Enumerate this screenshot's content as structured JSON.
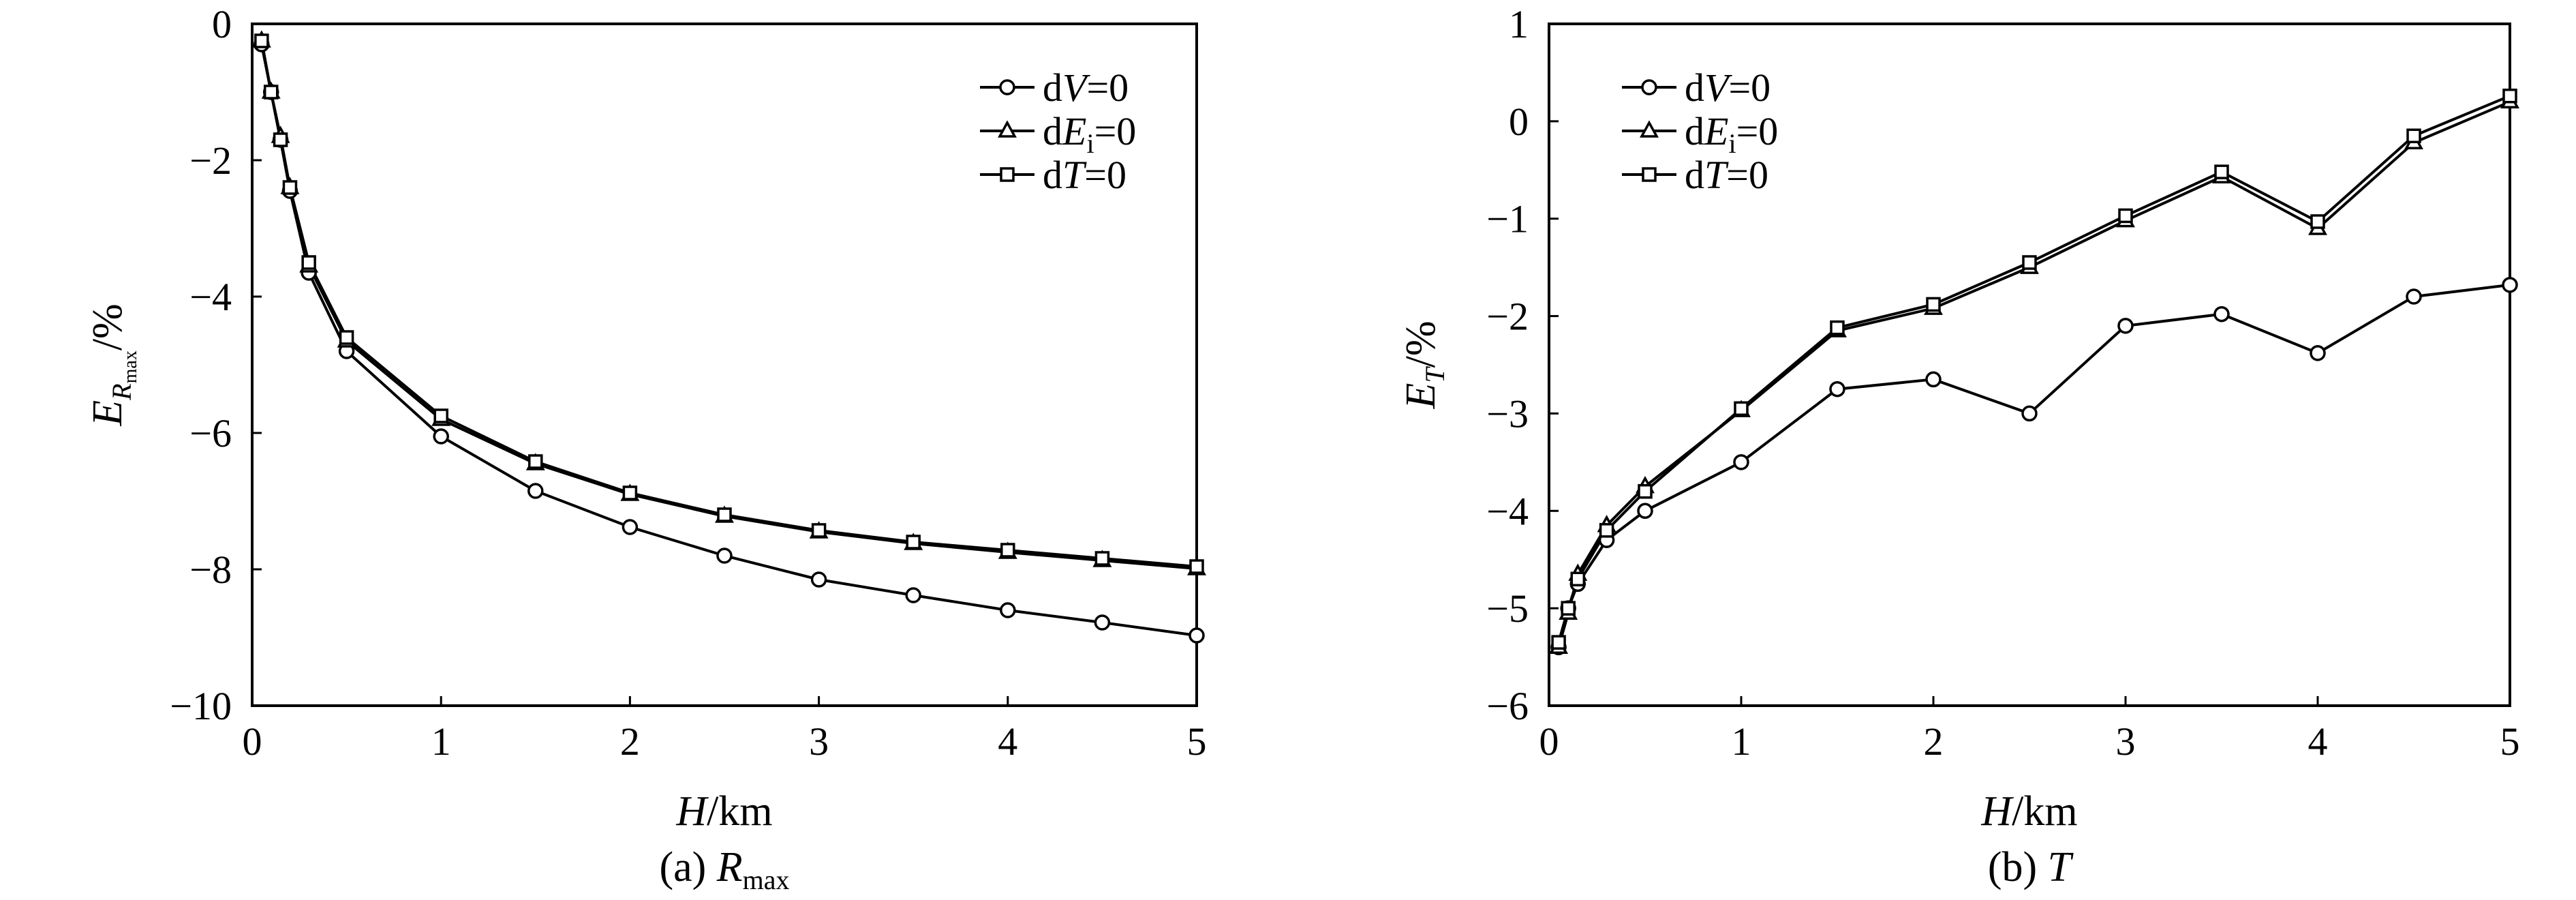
{
  "charts": [
    {
      "id": "a",
      "caption": {
        "prefix": "(a) ",
        "main": "R",
        "sub": "max"
      },
      "ylabel": {
        "main": "E",
        "sub1": "R",
        "sub2": "max",
        "tail": "/%"
      },
      "xlabel": {
        "main": "H",
        "tail": "/km"
      },
      "legend": [
        {
          "d": "d",
          "v": "V",
          "s": "",
          "e": "=0"
        },
        {
          "d": "d",
          "v": "E",
          "s": "i",
          "e": "=0"
        },
        {
          "d": "d",
          "v": "T",
          "s": "",
          "e": "=0"
        }
      ]
    },
    {
      "id": "b",
      "caption": {
        "prefix": "(b) ",
        "main": "T"
      },
      "ylabel": {
        "main": "E",
        "sub1": "T",
        "tail": "/%"
      },
      "xlabel": {
        "main": "H",
        "tail": "/km"
      },
      "legend": [
        {
          "d": "d",
          "v": "V",
          "s": "",
          "e": "=0"
        },
        {
          "d": "d",
          "v": "E",
          "s": "i",
          "e": "=0"
        },
        {
          "d": "d",
          "v": "T",
          "s": "",
          "e": "=0"
        }
      ]
    }
  ],
  "chart_data": [
    {
      "type": "line",
      "xlim": [
        0,
        5
      ],
      "ylim": [
        -10,
        0
      ],
      "xticks": [
        0,
        1,
        2,
        3,
        4,
        5
      ],
      "yticks": [
        0,
        -2,
        -4,
        -6,
        -8,
        -10
      ],
      "ytick_labels": [
        "0",
        "−2",
        "−4",
        "−6",
        "−8",
        "−10"
      ],
      "legend_position": "top-right",
      "grid": false,
      "series": [
        {
          "name": "dV=0",
          "marker": "circle",
          "x": [
            0.05,
            0.1,
            0.15,
            0.2,
            0.3,
            0.5,
            1,
            1.5,
            2,
            2.5,
            3,
            3.5,
            4,
            4.5,
            5
          ],
          "y": [
            -0.3,
            -1.0,
            -1.7,
            -2.45,
            -3.65,
            -4.8,
            -6.05,
            -6.85,
            -7.38,
            -7.8,
            -8.15,
            -8.38,
            -8.6,
            -8.78,
            -8.97
          ]
        },
        {
          "name": "dEi=0",
          "marker": "triangle",
          "x": [
            0.05,
            0.1,
            0.15,
            0.2,
            0.3,
            0.5,
            1,
            1.5,
            2,
            2.5,
            3,
            3.5,
            4,
            4.5,
            5
          ],
          "y": [
            -0.25,
            -1.0,
            -1.65,
            -2.4,
            -3.55,
            -4.65,
            -5.8,
            -6.45,
            -6.9,
            -7.22,
            -7.45,
            -7.62,
            -7.75,
            -7.87,
            -7.99
          ]
        },
        {
          "name": "dT=0",
          "marker": "square",
          "x": [
            0.05,
            0.1,
            0.15,
            0.2,
            0.3,
            0.5,
            1,
            1.5,
            2,
            2.5,
            3,
            3.5,
            4,
            4.5,
            5
          ],
          "y": [
            -0.25,
            -1.0,
            -1.7,
            -2.4,
            -3.5,
            -4.6,
            -5.75,
            -6.42,
            -6.88,
            -7.2,
            -7.43,
            -7.6,
            -7.72,
            -7.84,
            -7.96
          ]
        }
      ]
    },
    {
      "type": "line",
      "xlim": [
        0,
        5
      ],
      "ylim": [
        -6,
        1
      ],
      "xticks": [
        0,
        1,
        2,
        3,
        4,
        5
      ],
      "yticks": [
        1,
        0,
        -1,
        -2,
        -3,
        -4,
        -5,
        -6
      ],
      "ytick_labels": [
        "1",
        "0",
        "−1",
        "−2",
        "−3",
        "−4",
        "−5",
        "−6"
      ],
      "legend_position": "top-left",
      "grid": false,
      "series": [
        {
          "name": "dV=0",
          "marker": "circle",
          "x": [
            0.05,
            0.1,
            0.15,
            0.3,
            0.5,
            1,
            1.5,
            2,
            2.5,
            3,
            3.5,
            4,
            4.5,
            5
          ],
          "y": [
            -5.4,
            -5.0,
            -4.75,
            -4.3,
            -4.0,
            -3.5,
            -2.75,
            -2.65,
            -3.0,
            -2.1,
            -1.98,
            -2.38,
            -1.8,
            -1.68
          ]
        },
        {
          "name": "dEi=0",
          "marker": "triangle",
          "x": [
            0.05,
            0.1,
            0.15,
            0.3,
            0.5,
            1,
            1.5,
            2,
            2.5,
            3,
            3.5,
            4,
            4.5,
            5
          ],
          "y": [
            -5.4,
            -5.05,
            -4.65,
            -4.15,
            -3.75,
            -2.97,
            -2.15,
            -1.92,
            -1.5,
            -1.02,
            -0.57,
            -1.1,
            -0.22,
            0.2
          ]
        },
        {
          "name": "dT=0",
          "marker": "square",
          "x": [
            0.05,
            0.1,
            0.15,
            0.3,
            0.5,
            1,
            1.5,
            2,
            2.5,
            3,
            3.5,
            4,
            4.5,
            5
          ],
          "y": [
            -5.35,
            -5.0,
            -4.7,
            -4.2,
            -3.8,
            -2.95,
            -2.12,
            -1.88,
            -1.45,
            -0.97,
            -0.52,
            -1.03,
            -0.15,
            0.26
          ]
        }
      ]
    }
  ]
}
